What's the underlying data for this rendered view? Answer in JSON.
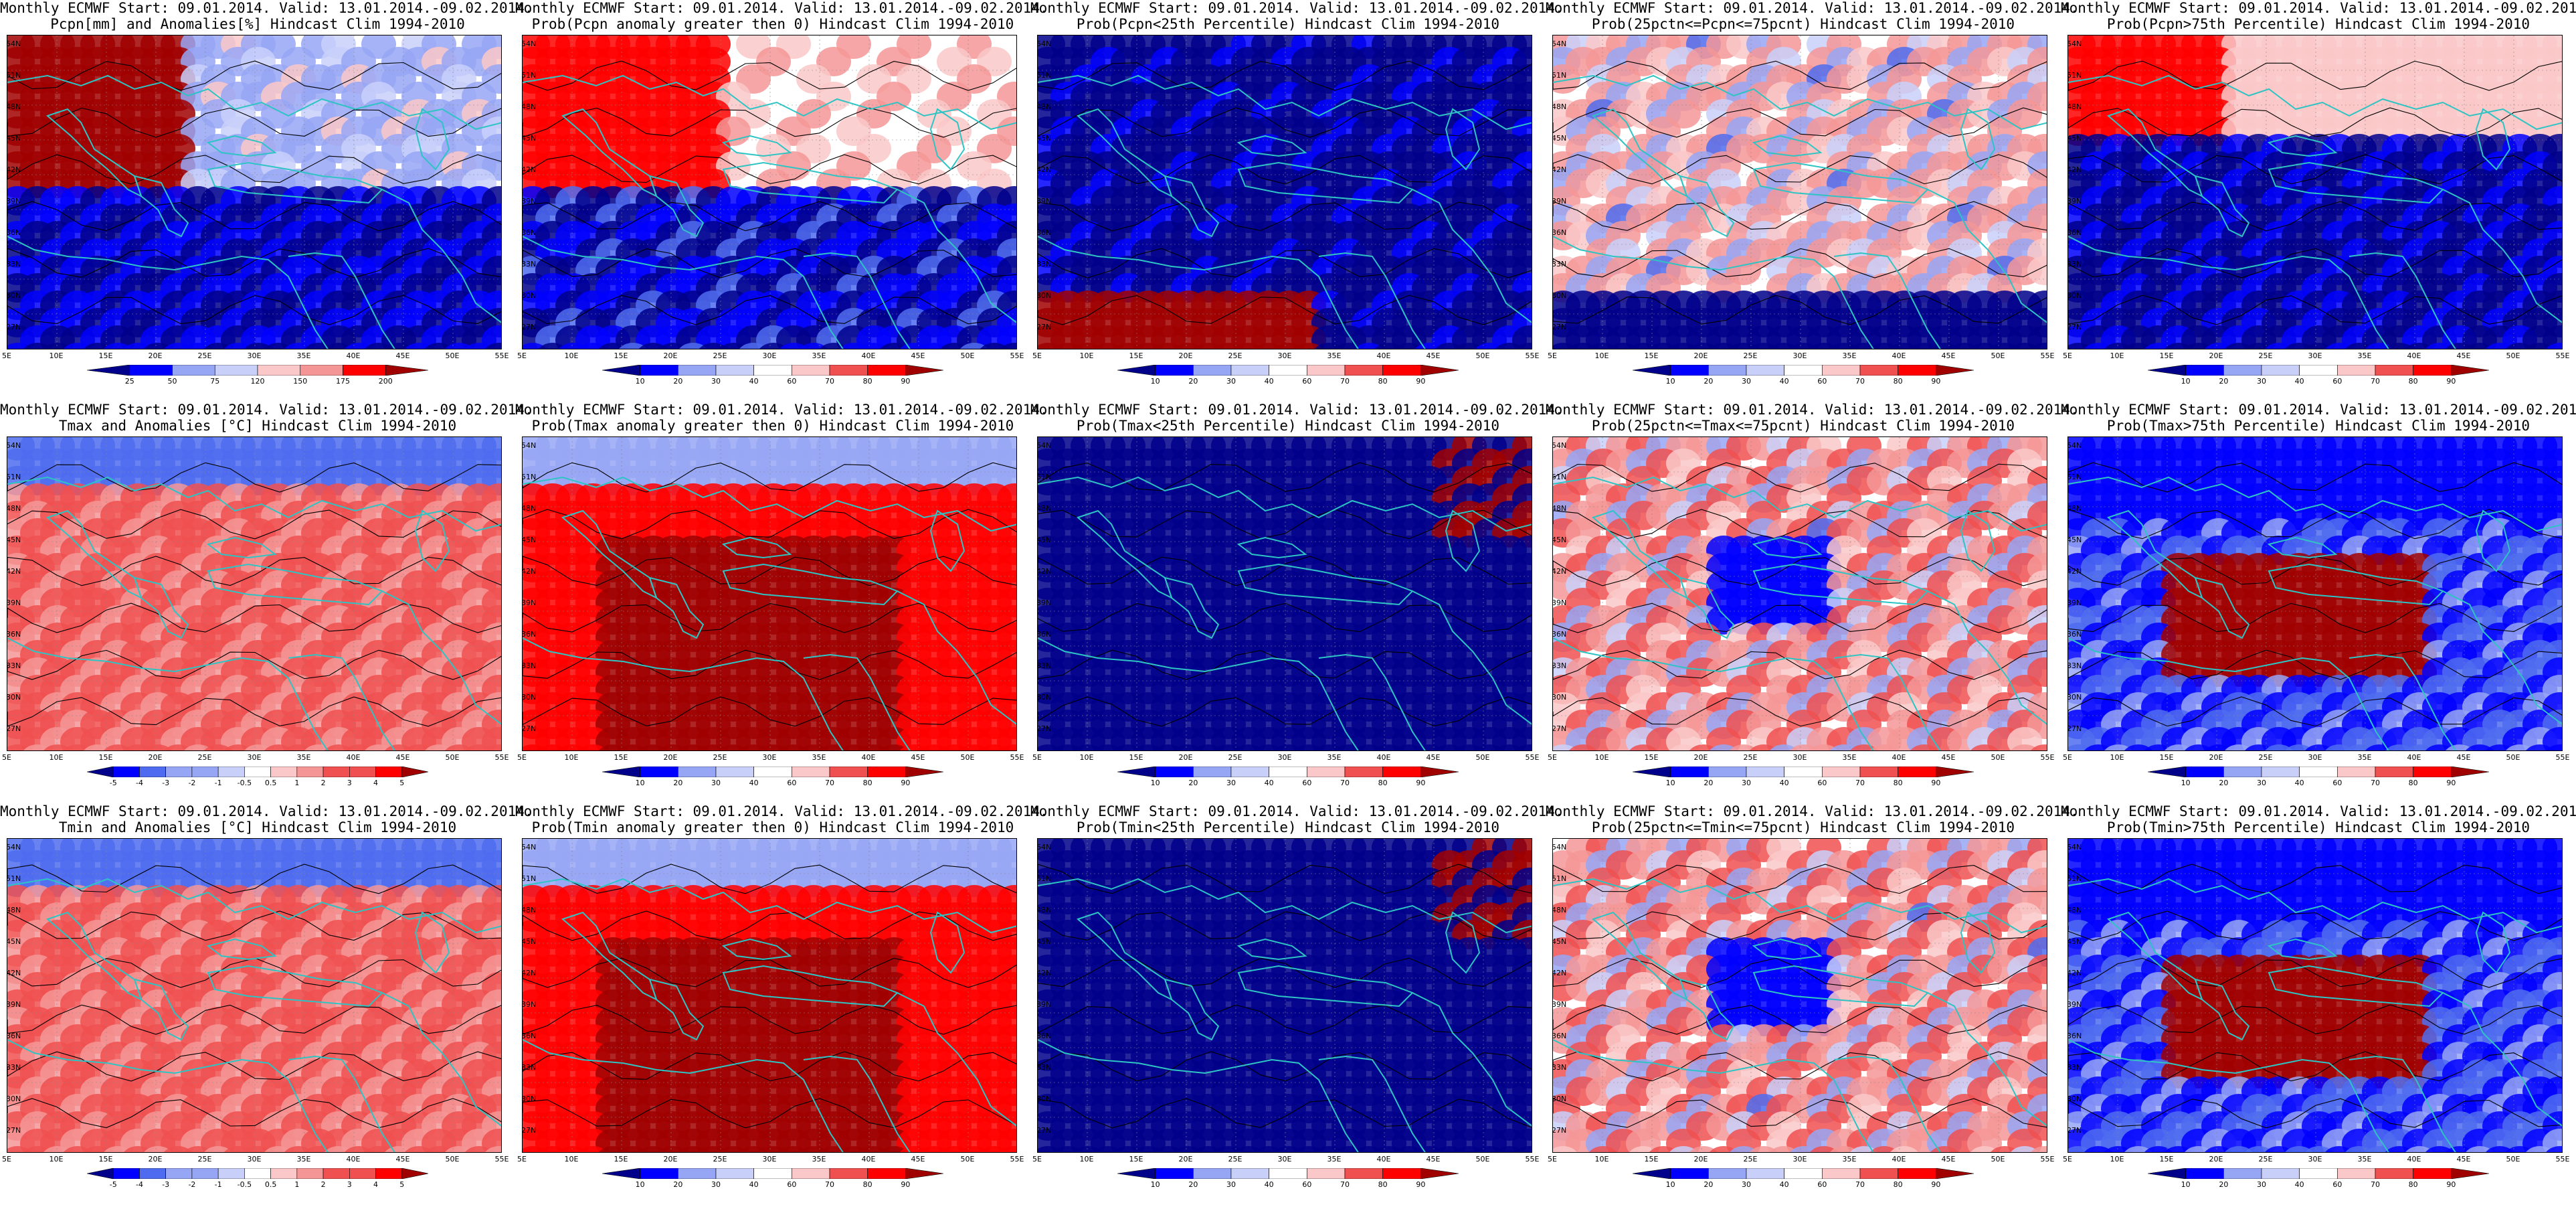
{
  "header_line": "Monthly ECMWF Start: 09.01.2014. Valid: 13.01.2014.-09.02.2014.",
  "lat_labels": [
    "54N",
    "51N",
    "48N",
    "45N",
    "42N",
    "39N",
    "36N",
    "33N",
    "30N",
    "27N"
  ],
  "lon_labels": [
    "5E",
    "10E",
    "15E",
    "20E",
    "25E",
    "30E",
    "35E",
    "40E",
    "45E",
    "50E",
    "55E"
  ],
  "colorbars": {
    "pcpn_anom": [
      "25",
      "50",
      "75",
      "120",
      "150",
      "175",
      "200"
    ],
    "temp_anom": [
      "-5",
      "-4",
      "-3",
      "-2",
      "-1",
      "-0.5",
      "0.5",
      "1",
      "2",
      "3",
      "4",
      "5"
    ],
    "prob": [
      "10",
      "20",
      "30",
      "40",
      "60",
      "70",
      "80",
      "90"
    ]
  },
  "colors": {
    "coast": "#2ec4c4",
    "contour": "#000000",
    "blue_scale": [
      "#00008b",
      "#0000ff",
      "#4f6cf0",
      "#96a6f5",
      "#c8d0fa"
    ],
    "red_scale": [
      "#fac8c8",
      "#f59696",
      "#f05050",
      "#ff0000",
      "#a00000"
    ]
  },
  "panels": [
    {
      "title2": "Pcpn[mm] and Anomalies[%] Hindcast Clim 1994-2010",
      "bar": "pcpn_anom",
      "field": "pcpn_anom"
    },
    {
      "title2": "Prob(Pcpn anomaly greater then 0) Hindcast Clim 1994-2010",
      "bar": "prob",
      "field": "pcpn_gt0"
    },
    {
      "title2": "Prob(Pcpn<25th Percentile) Hindcast Clim 1994-2010",
      "bar": "prob",
      "field": "pcpn_lt25"
    },
    {
      "title2": "Prob(25pctn<=Pcpn<=75pcnt) Hindcast Clim 1994-2010",
      "bar": "prob",
      "field": "pcpn_mid"
    },
    {
      "title2": "Prob(Pcpn>75th Percentile) Hindcast Clim 1994-2010",
      "bar": "prob",
      "field": "pcpn_gt75"
    },
    {
      "title2": "Tmax and Anomalies [°C] Hindcast Clim 1994-2010",
      "bar": "temp_anom",
      "field": "t_anom"
    },
    {
      "title2": "Prob(Tmax anomaly greater then 0) Hindcast Clim 1994-2010",
      "bar": "prob",
      "field": "t_gt0"
    },
    {
      "title2": "Prob(Tmax<25th Percentile) Hindcast Clim 1994-2010",
      "bar": "prob",
      "field": "t_lt25"
    },
    {
      "title2": "Prob(25pctn<=Tmax<=75pcnt) Hindcast Clim 1994-2010",
      "bar": "prob",
      "field": "t_mid"
    },
    {
      "title2": "Prob(Tmax>75th Percentile) Hindcast Clim 1994-2010",
      "bar": "prob",
      "field": "t_gt75"
    },
    {
      "title2": "Tmin and Anomalies [°C] Hindcast Clim 1994-2010",
      "bar": "temp_anom",
      "field": "t_anom"
    },
    {
      "title2": "Prob(Tmin anomaly greater then 0) Hindcast Clim 1994-2010",
      "bar": "prob",
      "field": "t_gt0"
    },
    {
      "title2": "Prob(Tmin<25th Percentile) Hindcast Clim 1994-2010",
      "bar": "prob",
      "field": "t_lt25"
    },
    {
      "title2": "Prob(25pctn<=Tmin<=75pcnt) Hindcast Clim 1994-2010",
      "bar": "prob",
      "field": "t_mid"
    },
    {
      "title2": "Prob(Tmin>75th Percentile) Hindcast Clim 1994-2010",
      "bar": "prob",
      "field": "t_gt75"
    }
  ]
}
